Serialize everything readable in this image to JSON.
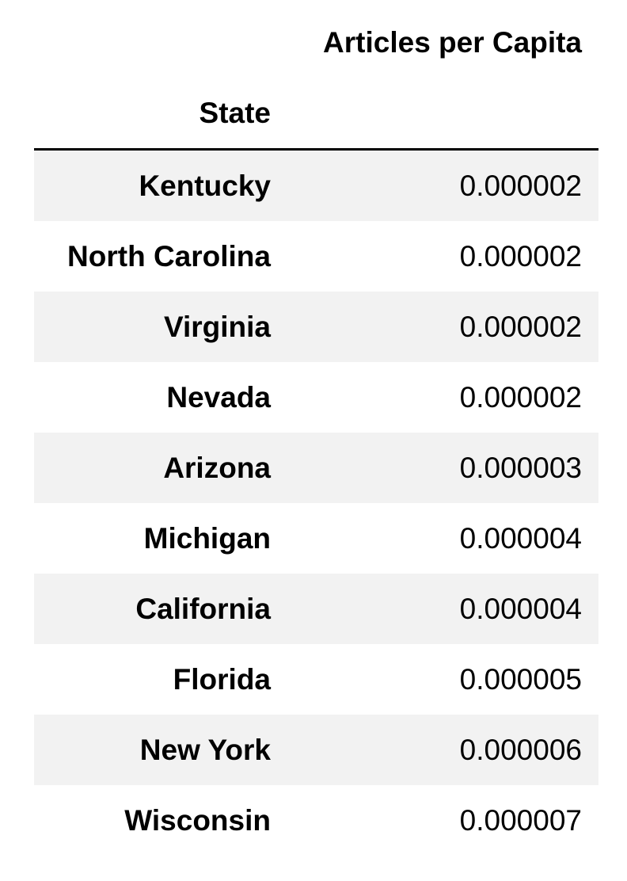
{
  "table": {
    "column_header": "Articles per Capita",
    "index_name": "State",
    "rows": [
      {
        "state": "Kentucky",
        "value": "0.000002"
      },
      {
        "state": "North Carolina",
        "value": "0.000002"
      },
      {
        "state": "Virginia",
        "value": "0.000002"
      },
      {
        "state": "Nevada",
        "value": "0.000002"
      },
      {
        "state": "Arizona",
        "value": "0.000003"
      },
      {
        "state": "Michigan",
        "value": "0.000004"
      },
      {
        "state": "California",
        "value": "0.000004"
      },
      {
        "state": "Florida",
        "value": "0.000005"
      },
      {
        "state": "New York",
        "value": "0.000006"
      },
      {
        "state": "Wisconsin",
        "value": "0.000007"
      }
    ]
  }
}
